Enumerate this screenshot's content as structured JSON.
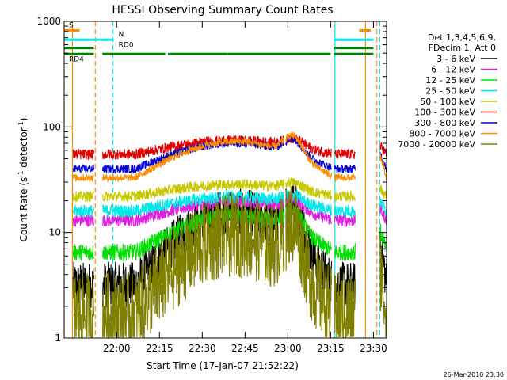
{
  "chart_data": {
    "type": "line",
    "title": "HESSI Observing Summary Count Rates",
    "xlabel": "Start Time (17-Jan-07 21:52:22)",
    "ylabel": "Count Rate (s⁻¹ detector⁻¹)",
    "ylabel_parts": {
      "pre": "Count Rate (s",
      "sup1": "-1",
      "mid": " detector",
      "sup2": "-1",
      "post": ")"
    },
    "y_scale": "log",
    "ylim": [
      1,
      1000
    ],
    "xlim_min": [
      -10.4,
      102.6
    ],
    "x_ticks": [
      {
        "m": 8,
        "label": "22:00"
      },
      {
        "m": 23,
        "label": "22:15"
      },
      {
        "m": 38,
        "label": "22:30"
      },
      {
        "m": 53,
        "label": "22:45"
      },
      {
        "m": 68,
        "label": "23:00"
      },
      {
        "m": 83,
        "label": "23:15"
      },
      {
        "m": 98,
        "label": "23:30"
      }
    ],
    "y_ticks": [
      {
        "v": 1,
        "label": "1"
      },
      {
        "v": 10,
        "label": "10"
      },
      {
        "v": 100,
        "label": "100"
      },
      {
        "v": 1000,
        "label": "1000"
      }
    ],
    "legend_header": [
      "Det 1,3,4,5,6,9,",
      "FDecim 1, Att 0"
    ],
    "series": [
      {
        "name": "3 - 6 keV",
        "color": "#000000",
        "base": 3.2,
        "amp": 5.0,
        "noise": 0.22
      },
      {
        "name": "6 - 12 keV",
        "color": "#e020e0",
        "base": 13.0,
        "amp": 1.5,
        "noise": 0.06
      },
      {
        "name": "12 - 25 keV",
        "color": "#00e000",
        "base": 6.5,
        "amp": 2.2,
        "noise": 0.08
      },
      {
        "name": "25 - 50 keV",
        "color": "#00e8e8",
        "base": 16.0,
        "amp": 1.35,
        "noise": 0.06
      },
      {
        "name": "50 - 100 keV",
        "color": "#c8c800",
        "base": 22.0,
        "amp": 1.3,
        "noise": 0.05
      },
      {
        "name": "100 - 300 keV",
        "color": "#e00000",
        "base": 55.0,
        "amp": 1.35,
        "noise": 0.05
      },
      {
        "name": "300 - 800 keV",
        "color": "#0000d0",
        "base": 40.0,
        "amp": 1.75,
        "noise": 0.04
      },
      {
        "name": "800 - 7000 keV",
        "color": "#ff8c00",
        "base": 33.0,
        "amp": 2.2,
        "noise": 0.035
      },
      {
        "name": "7000 - 20000 keV",
        "color": "#808000",
        "base": 1.7,
        "amp": 5.5,
        "noise": 0.4
      }
    ],
    "night_intervals_min": [
      [
        -10.4,
        -7.5
      ],
      [
        14.5,
        84.5
      ],
      [
        91.5,
        102.6
      ]
    ],
    "data_gaps_min": [
      [
        -10.4,
        -7.4
      ],
      [
        0.0,
        3.0
      ],
      [
        44.7,
        44.9
      ],
      [
        66.8,
        67.3
      ],
      [
        83.3,
        84.3
      ],
      [
        91.6,
        100.2
      ]
    ],
    "saa_min": [
      -5,
      88
    ],
    "night_boundaries_min": [
      2,
      6.5,
      14.5,
      84.5,
      95.2,
      96.4
    ],
    "flags": [
      {
        "label": "S",
        "color": "#ff8c00",
        "level": 820,
        "segments": [
          [
            -10.4,
            -5
          ],
          [
            93,
            97
          ]
        ]
      },
      {
        "label": "N",
        "color": "#00e8e8",
        "level": 670,
        "segments": [
          [
            -10.4,
            7
          ],
          [
            84,
            98
          ]
        ]
      },
      {
        "label": "RD0",
        "color": "#008000",
        "level": 560,
        "segments": [
          [
            -10.4,
            0
          ],
          [
            84,
            98
          ]
        ]
      },
      {
        "label": "RD4",
        "color": "#008000",
        "level": 490,
        "segments": [
          [
            -10.4,
            0
          ],
          [
            3,
            25
          ],
          [
            26,
            47
          ],
          [
            47,
            83
          ],
          [
            84,
            98
          ]
        ]
      }
    ],
    "vertical_lines": [
      {
        "m": -7.5,
        "color": "#ff8c00",
        "dashed": false
      },
      {
        "m": 0.5,
        "color": "#ff8c00",
        "dashed": true
      },
      {
        "m": 6.7,
        "color": "#00e8e8",
        "dashed": true
      },
      {
        "m": 84.5,
        "color": "#00e8e8",
        "dashed": false
      },
      {
        "m": 95.2,
        "color": "#ff8c00",
        "dashed": false
      },
      {
        "m": 99.2,
        "color": "#ff8c00",
        "dashed": true
      },
      {
        "m": 100.2,
        "color": "#00e8e8",
        "dashed": true
      }
    ],
    "vertical_line_color": "#00e8e8",
    "grid": false
  },
  "timestamp": "26-Mar-2010 23:30"
}
